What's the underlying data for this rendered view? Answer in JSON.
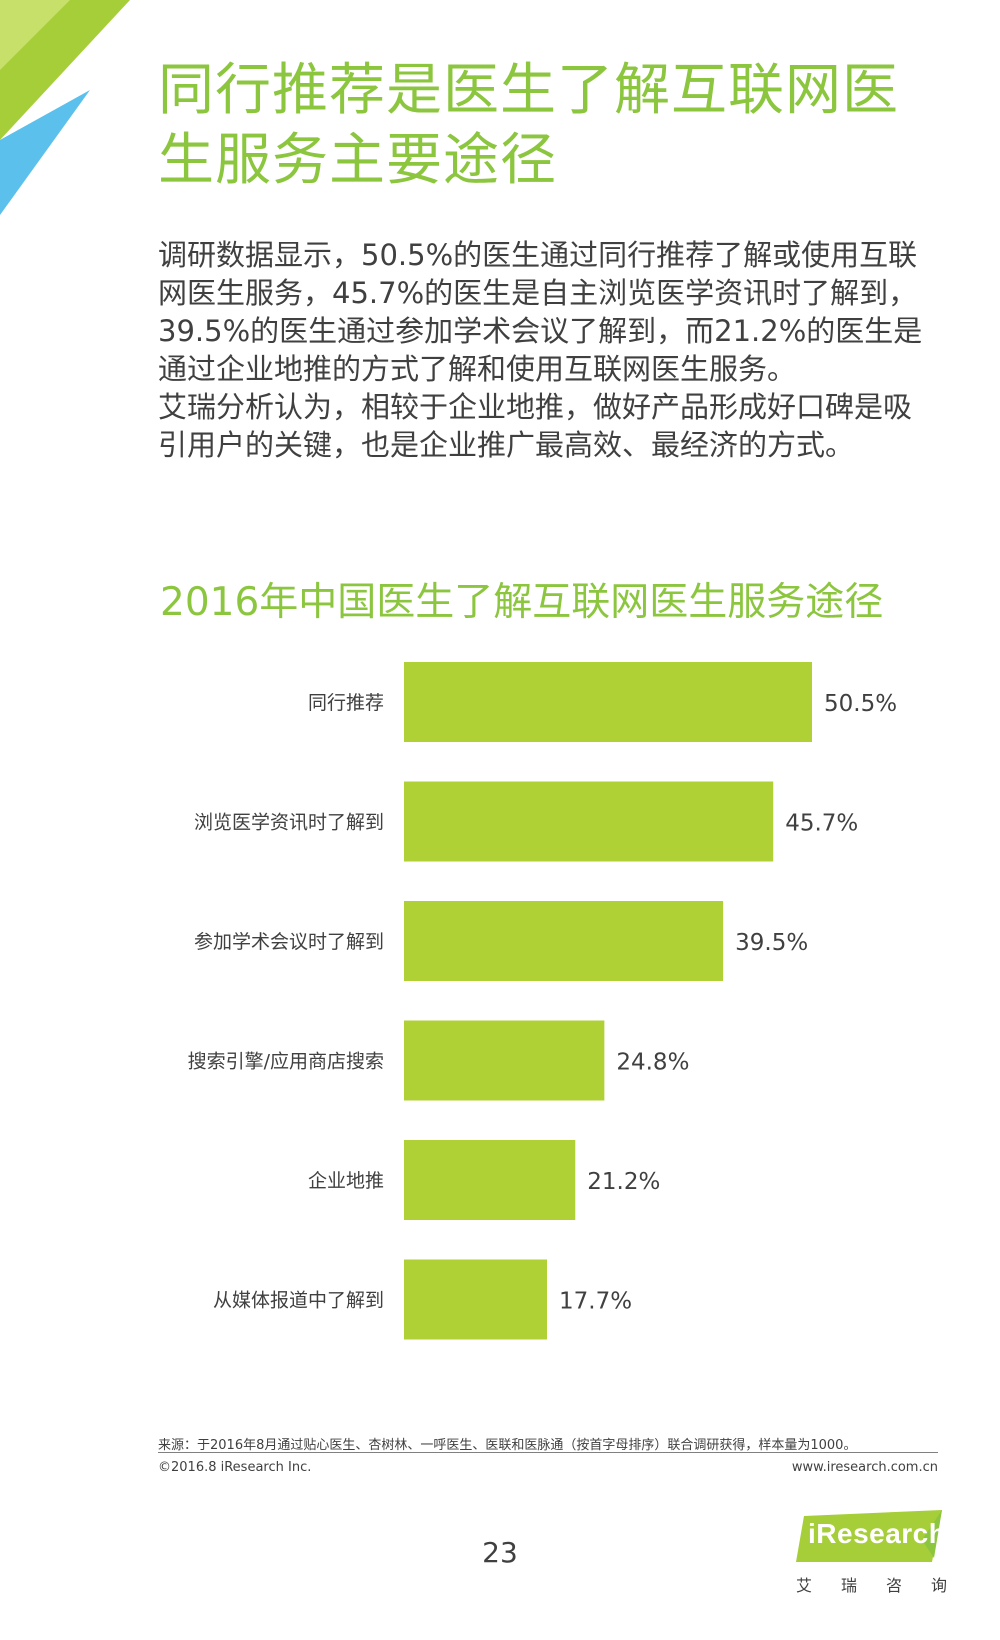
{
  "header": {
    "title": "同行推荐是医生了解互联网医生服务主要途径"
  },
  "body": {
    "paragraph1": "调研数据显示，50.5%的医生通过同行推荐了解或使用互联网医生服务，45.7%的医生是自主浏览医学资讯时了解到，39.5%的医生通过参加学术会议了解到，而21.2%的医生是通过企业地推的方式了解和使用互联网医生服务。",
    "paragraph2": "艾瑞分析认为，相较于企业地推，做好产品形成好口碑是吸引用户的关键，也是企业推广最高效、最经济的方式。"
  },
  "chart_data": {
    "type": "bar",
    "orientation": "horizontal",
    "title": "2016年中国医生了解互联网医生服务途径",
    "categories": [
      "同行推荐",
      "浏览医学资讯时了解到",
      "参加学术会议时了解到",
      "搜索引擎/应用商店搜索",
      "企业地推",
      "从媒体报道中了解到"
    ],
    "values": [
      50.5,
      45.7,
      39.5,
      24.8,
      21.2,
      17.7
    ],
    "data_labels": [
      "50.5%",
      "45.7%",
      "39.5%",
      "24.8%",
      "21.2%",
      "17.7%"
    ],
    "unit": "%",
    "xlim": [
      0,
      55
    ],
    "grid": false,
    "bar_color": "#b0d136"
  },
  "footer": {
    "source": "来源：于2016年8月通过贴心医生、杏树林、一呼医生、医联和医脉通（按首字母排序）联合调研获得，样本量为1000。",
    "copyright": "©2016.8 iResearch Inc.",
    "website": "www.iresearch.com.cn",
    "page_number": "23"
  },
  "logo": {
    "text": "iResearch",
    "cn": "艾瑞咨询"
  },
  "colors": {
    "accent": "#8cc63f",
    "bar": "#b0d136",
    "text": "#404040"
  }
}
